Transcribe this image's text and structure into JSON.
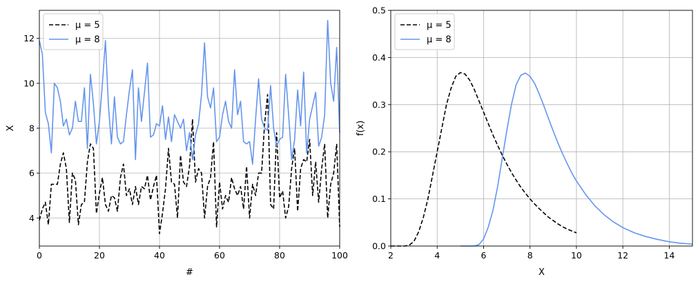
{
  "chart_data": [
    {
      "type": "line",
      "xlabel": "#",
      "ylabel": "X",
      "xlim": [
        0,
        100
      ],
      "ylim": [
        2.75,
        13.25
      ],
      "xticks": [
        0,
        20,
        40,
        60,
        80,
        100
      ],
      "yticks": [
        4,
        6,
        8,
        10,
        12
      ],
      "grid": true,
      "legend": "top-left",
      "series": [
        {
          "name": "μ = 5",
          "color": "#000000",
          "style": "dashed",
          "x": [
            0,
            1,
            2,
            3,
            4,
            5,
            6,
            7,
            8,
            9,
            10,
            11,
            12,
            13,
            14,
            15,
            16,
            17,
            18,
            19,
            20,
            21,
            22,
            23,
            24,
            25,
            26,
            27,
            28,
            29,
            30,
            31,
            32,
            33,
            34,
            35,
            36,
            37,
            38,
            39,
            40,
            41,
            42,
            43,
            44,
            45,
            46,
            47,
            48,
            49,
            50,
            51,
            52,
            53,
            54,
            55,
            56,
            57,
            58,
            59,
            60,
            61,
            62,
            63,
            64,
            65,
            66,
            67,
            68,
            69,
            70,
            71,
            72,
            73,
            74,
            75,
            76,
            77,
            78,
            79,
            80,
            81,
            82,
            83,
            84,
            85,
            86,
            87,
            88,
            89,
            90,
            91,
            92,
            93,
            94,
            95,
            96,
            97,
            98,
            99,
            100
          ],
          "y": [
            3.9,
            4.4,
            4.7,
            3.7,
            5.5,
            5.5,
            5.5,
            6.4,
            6.9,
            6.2,
            3.8,
            6.0,
            5.7,
            3.7,
            4.6,
            4.7,
            6.5,
            7.3,
            7.1,
            4.2,
            5.1,
            5.8,
            4.6,
            4.3,
            5.0,
            4.9,
            4.3,
            5.8,
            6.4,
            5.0,
            5.3,
            4.6,
            5.4,
            4.6,
            5.4,
            5.3,
            5.9,
            4.8,
            5.4,
            5.9,
            3.3,
            4.2,
            5.3,
            7.1,
            5.6,
            5.5,
            4.0,
            6.8,
            5.6,
            5.4,
            6.3,
            8.4,
            5.6,
            6.2,
            6.0,
            4.0,
            5.4,
            5.8,
            7.4,
            3.6,
            5.6,
            4.4,
            5.0,
            4.7,
            5.8,
            5.3,
            5.0,
            5.4,
            4.4,
            6.3,
            4.0,
            5.5,
            5.0,
            6.0,
            6.0,
            8.2,
            9.5,
            4.6,
            4.4,
            7.8,
            4.9,
            5.2,
            4.0,
            4.5,
            6.2,
            7.1,
            4.3,
            6.2,
            6.6,
            6.5,
            7.5,
            5.0,
            6.5,
            4.7,
            6.2,
            7.3,
            4.0,
            5.5,
            6.0,
            7.3,
            3.6
          ]
        },
        {
          "name": "μ = 8",
          "color": "#6495ED",
          "style": "solid",
          "x": [
            0,
            1,
            2,
            3,
            4,
            5,
            6,
            7,
            8,
            9,
            10,
            11,
            12,
            13,
            14,
            15,
            16,
            17,
            18,
            19,
            20,
            21,
            22,
            23,
            24,
            25,
            26,
            27,
            28,
            29,
            30,
            31,
            32,
            33,
            34,
            35,
            36,
            37,
            38,
            39,
            40,
            41,
            42,
            43,
            44,
            45,
            46,
            47,
            48,
            49,
            50,
            51,
            52,
            53,
            54,
            55,
            56,
            57,
            58,
            59,
            60,
            61,
            62,
            63,
            64,
            65,
            66,
            67,
            68,
            69,
            70,
            71,
            72,
            73,
            74,
            75,
            76,
            77,
            78,
            79,
            80,
            81,
            82,
            83,
            84,
            85,
            86,
            87,
            88,
            89,
            90,
            91,
            92,
            93,
            94,
            95,
            96,
            97,
            98,
            99,
            100
          ],
          "y": [
            11.9,
            11.3,
            8.7,
            8.2,
            6.9,
            10.0,
            9.8,
            9.2,
            8.1,
            8.4,
            7.7,
            8.0,
            9.2,
            8.3,
            8.3,
            9.8,
            7.1,
            10.4,
            9.1,
            7.3,
            8.3,
            10.0,
            11.9,
            9.0,
            7.3,
            9.4,
            7.6,
            7.3,
            7.4,
            8.6,
            9.7,
            10.6,
            6.6,
            9.8,
            8.3,
            9.6,
            10.9,
            7.6,
            7.7,
            8.2,
            8.1,
            9.0,
            7.5,
            8.5,
            7.4,
            8.6,
            8.3,
            8.0,
            8.4,
            7.0,
            7.8,
            6.6,
            7.7,
            8.2,
            9.5,
            11.8,
            9.4,
            8.9,
            9.8,
            7.4,
            7.6,
            8.6,
            9.2,
            8.3,
            8.0,
            10.6,
            8.6,
            9.2,
            7.4,
            7.3,
            7.4,
            6.4,
            8.4,
            10.2,
            8.4,
            8.0,
            7.9,
            9.9,
            8.0,
            7.2,
            7.5,
            7.6,
            10.4,
            8.6,
            6.6,
            7.5,
            9.7,
            8.1,
            10.5,
            6.9,
            8.4,
            9.0,
            9.6,
            7.2,
            7.6,
            8.6,
            12.8,
            10.0,
            9.2,
            11.6,
            7.8
          ]
        }
      ]
    },
    {
      "type": "line",
      "xlabel": "X",
      "ylabel": "f(x)",
      "xlim": [
        2,
        15
      ],
      "ylim": [
        0,
        0.5
      ],
      "xticks": [
        2,
        4,
        6,
        8,
        10,
        12,
        14
      ],
      "yticks": [
        0.0,
        0.1,
        0.2,
        0.3,
        0.4,
        0.5
      ],
      "xtick_labels": [
        "2",
        "4",
        "6",
        "8",
        "10",
        "12",
        "14"
      ],
      "ytick_labels": [
        "0.0",
        "0.1",
        "0.2",
        "0.3",
        "0.4",
        "0.5"
      ],
      "grid": true,
      "legend": "top-left",
      "series": [
        {
          "name": "μ = 5",
          "color": "#000000",
          "style": "dashed",
          "x": [
            2.0,
            2.2,
            2.4,
            2.6,
            2.8,
            3.0,
            3.2,
            3.4,
            3.6,
            3.8,
            4.0,
            4.2,
            4.4,
            4.6,
            4.8,
            5.0,
            5.2,
            5.4,
            5.6,
            5.8,
            6.0,
            6.2,
            6.4,
            6.6,
            6.8,
            7.0,
            7.2,
            7.4,
            7.6,
            7.8,
            8.0,
            8.2,
            8.4,
            8.6,
            8.8,
            9.0,
            9.2,
            9.4,
            9.6,
            9.8,
            10.0
          ],
          "y": [
            0.0,
            0.0,
            0.0,
            0.0,
            0.002,
            0.01,
            0.03,
            0.06,
            0.1,
            0.15,
            0.2,
            0.25,
            0.3,
            0.335,
            0.36,
            0.368,
            0.365,
            0.352,
            0.332,
            0.308,
            0.284,
            0.26,
            0.236,
            0.214,
            0.193,
            0.174,
            0.156,
            0.14,
            0.125,
            0.112,
            0.1,
            0.089,
            0.079,
            0.07,
            0.061,
            0.054,
            0.047,
            0.041,
            0.036,
            0.032,
            0.028
          ]
        },
        {
          "name": "μ = 8",
          "color": "#6495ED",
          "style": "solid",
          "x": [
            5.0,
            5.2,
            5.4,
            5.6,
            5.8,
            6.0,
            6.2,
            6.4,
            6.6,
            6.8,
            7.0,
            7.2,
            7.4,
            7.6,
            7.8,
            8.0,
            8.2,
            8.4,
            8.6,
            8.8,
            9.0,
            9.2,
            9.4,
            9.6,
            9.8,
            10.0,
            10.4,
            10.8,
            11.2,
            11.6,
            12.0,
            12.5,
            13.0,
            13.5,
            14.0,
            14.5,
            15.0
          ],
          "y": [
            0.0,
            0.0,
            0.0,
            0.0,
            0.003,
            0.015,
            0.04,
            0.075,
            0.125,
            0.185,
            0.245,
            0.3,
            0.342,
            0.362,
            0.367,
            0.36,
            0.345,
            0.322,
            0.297,
            0.27,
            0.244,
            0.219,
            0.196,
            0.175,
            0.155,
            0.138,
            0.109,
            0.085,
            0.066,
            0.051,
            0.039,
            0.028,
            0.02,
            0.014,
            0.009,
            0.006,
            0.004
          ]
        }
      ]
    }
  ]
}
